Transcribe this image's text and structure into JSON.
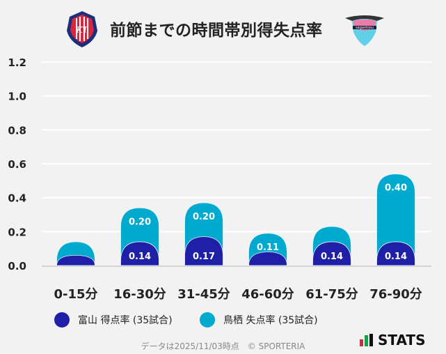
{
  "header": {
    "title": "前節までの時間帯別得失点率",
    "home_logo_text": "KATALLER TOYAMA",
    "away_logo_text": "sagantosu"
  },
  "chart_data": {
    "type": "bar",
    "stacked": true,
    "title": "前節までの時間帯別得失点率",
    "categories": [
      "0-15分",
      "16-30分",
      "31-45分",
      "46-60分",
      "61-75分",
      "76-90分"
    ],
    "series": [
      {
        "name": "富山 得点率 (35試合)",
        "color": "#1f1fa8",
        "values": [
          0.06,
          0.14,
          0.17,
          0.08,
          0.14,
          0.14
        ],
        "labels": [
          "",
          "0.14",
          "0.17",
          "",
          "0.14",
          "0.14"
        ]
      },
      {
        "name": "鳥栖 失点率 (35試合)",
        "color": "#00aacf",
        "values": [
          0.08,
          0.2,
          0.2,
          0.11,
          0.09,
          0.4
        ],
        "labels": [
          "",
          "0.20",
          "0.20",
          "0.11",
          "",
          "0.40"
        ]
      }
    ],
    "yticks": [
      "0.0",
      "0.2",
      "0.4",
      "0.6",
      "0.8",
      "1.0",
      "1.2"
    ],
    "ylim": [
      0,
      1.2
    ],
    "grid": true,
    "legend": "bottom"
  },
  "footer": {
    "note": "データは2025/11/03時点　© SPORTERIA",
    "brand": "STATS"
  }
}
